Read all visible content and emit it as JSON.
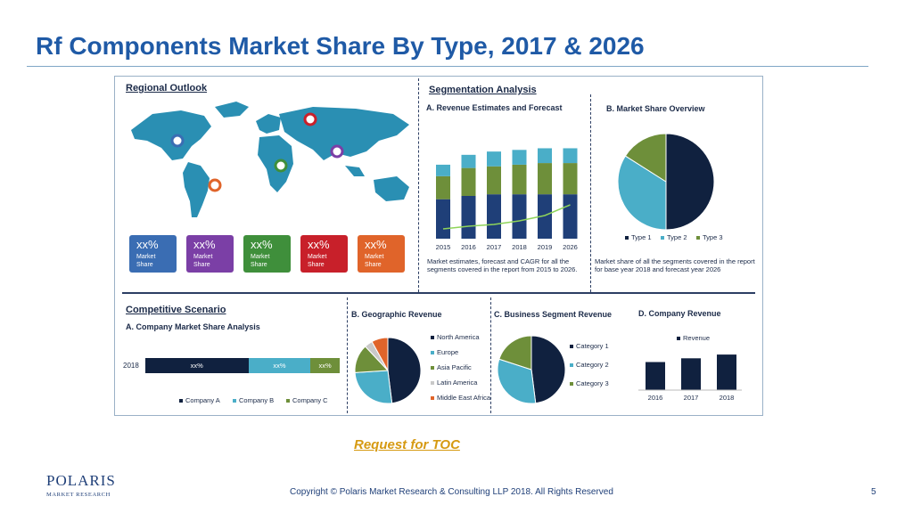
{
  "title": "Rf Components Market Share By Type, 2017 & 2026",
  "infographic": {
    "regional": {
      "heading": "Regional Outlook",
      "boxes": [
        {
          "pct": "xx%",
          "label": "Market Share",
          "color": "#3a6db3"
        },
        {
          "pct": "xx%",
          "label": "Market Share",
          "color": "#7b3fa6"
        },
        {
          "pct": "xx%",
          "label": "Market Share",
          "color": "#3f8f3b"
        },
        {
          "pct": "xx%",
          "label": "Market Share",
          "color": "#c8202a"
        },
        {
          "pct": "xx%",
          "label": "Market Share",
          "color": "#e0642a"
        }
      ]
    },
    "segmentation": {
      "heading": "Segmentation Analysis",
      "revenue_heading": "A. Revenue Estimates and Forecast",
      "revenue_caption": "Market estimates, forecast and CAGR for all the segments covered in the report from 2015 to 2026.",
      "share_heading": "B. Market Share Overview",
      "share_caption": "Market share of all the segments covered in the report for base year 2018 and forecast year 2026",
      "share_legend": [
        "Type 1",
        "Type 2",
        "Type 3"
      ]
    },
    "competitive": {
      "heading": "Competitive Scenario",
      "sub_heading": "A. Company Market Share Analysis",
      "year": "2018",
      "bar_labels": [
        "xx%",
        "xx%",
        "xx%"
      ],
      "legend": [
        "Company A",
        "Company B",
        "Company C"
      ]
    },
    "geographic": {
      "heading": "B. Geographic Revenue",
      "legend": [
        "North America",
        "Europe",
        "Asia Pacific",
        "Latin America",
        "Middle East Africa"
      ]
    },
    "business": {
      "heading": "C. Business Segment Revenue",
      "legend": [
        "Category 1",
        "Category 2",
        "Category 3"
      ]
    },
    "company_revenue": {
      "heading": "D. Company Revenue",
      "legend": "Revenue"
    }
  },
  "chart_data": [
    {
      "type": "bar",
      "title": "A. Revenue Estimates and Forecast",
      "categories": [
        "2015",
        "2016",
        "2017",
        "2018",
        "2019",
        "2026"
      ],
      "series": [
        {
          "values": [
            48,
            52,
            54,
            54,
            54,
            54
          ]
        },
        {
          "values": [
            28,
            34,
            34,
            36,
            38,
            38
          ]
        },
        {
          "values": [
            14,
            16,
            18,
            18,
            18,
            18
          ]
        }
      ],
      "trend": [
        3,
        6,
        8,
        12,
        18,
        30
      ],
      "colors": [
        "#1f3f78",
        "#6e8f3a",
        "#4aaec8"
      ]
    },
    {
      "type": "pie",
      "title": "B. Market Share Overview",
      "labels": [
        "Type 1",
        "Type 2",
        "Type 3"
      ],
      "values": [
        50,
        34,
        16
      ],
      "colors": [
        "#10213f",
        "#4aaec8",
        "#6e8f3a"
      ]
    },
    {
      "type": "bar",
      "title": "A. Company Market Share Analysis",
      "categories": [
        "2018"
      ],
      "series": [
        {
          "name": "Company A",
          "values": [
            53
          ]
        },
        {
          "name": "Company B",
          "values": [
            32
          ]
        },
        {
          "name": "Company C",
          "values": [
            15
          ]
        }
      ],
      "colors": [
        "#10213f",
        "#4aaec8",
        "#6e8f3a"
      ]
    },
    {
      "type": "pie",
      "title": "B. Geographic Revenue",
      "labels": [
        "North America",
        "Europe",
        "Asia Pacific",
        "Latin America",
        "Middle East Africa"
      ],
      "values": [
        48,
        26,
        14,
        4,
        8
      ],
      "colors": [
        "#10213f",
        "#4aaec8",
        "#6e8f3a",
        "#c9c9c9",
        "#e0642a"
      ]
    },
    {
      "type": "pie",
      "title": "C. Business Segment Revenue",
      "labels": [
        "Category 1",
        "Category 2",
        "Category 3"
      ],
      "values": [
        48,
        32,
        20
      ],
      "colors": [
        "#10213f",
        "#4aaec8",
        "#6e8f3a"
      ]
    },
    {
      "type": "bar",
      "title": "D. Company Revenue",
      "categories": [
        "2016",
        "2017",
        "2018"
      ],
      "series": [
        {
          "name": "Revenue",
          "values": [
            30,
            34,
            38
          ]
        }
      ],
      "colors": [
        "#10213f"
      ]
    }
  ],
  "link": "Request for TOC",
  "footer": {
    "copyright": "Copyright © Polaris Market Research & Consulting LLP 2018. All Rights Reserved",
    "page": "5",
    "logo_brand": "POLARIS",
    "logo_sub": "MARKET RESEARCH"
  }
}
